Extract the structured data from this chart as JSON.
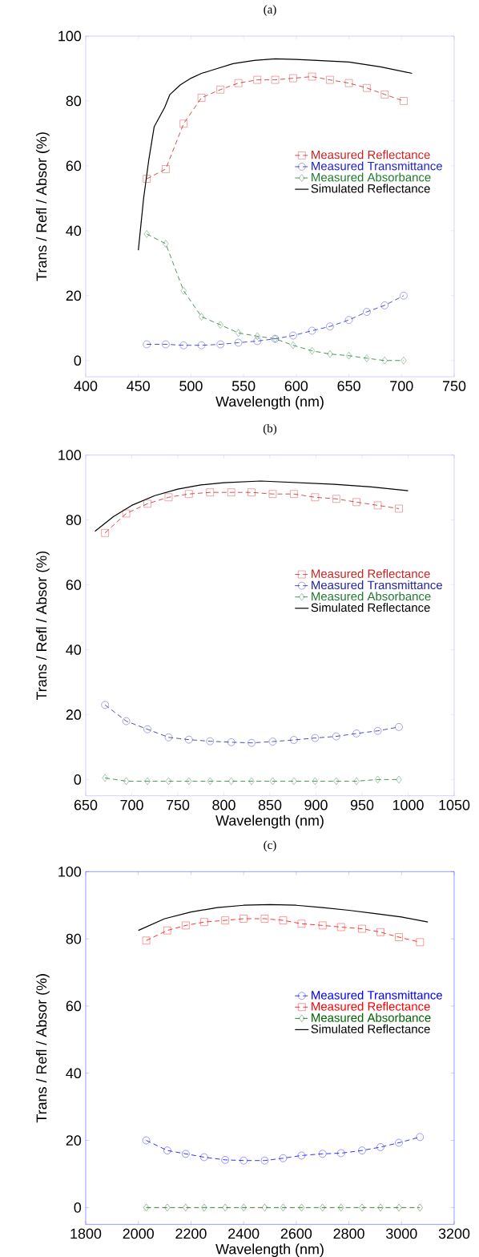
{
  "chart_data": [
    {
      "type": "line",
      "title": "(a)",
      "xlabel": "Wavelength (nm)",
      "ylabel": "Trans / Refl / Absor (%)",
      "xlim": [
        400,
        750
      ],
      "xticks": [
        400,
        450,
        500,
        550,
        600,
        650,
        700,
        750
      ],
      "ylim": [
        -5,
        100
      ],
      "yticks": [
        0,
        20,
        40,
        60,
        80,
        100
      ],
      "legend": "right",
      "grid": false,
      "series": [
        {
          "name": "Measured Reflectance",
          "color": "#cc2222",
          "marker": "square",
          "line_style": "dashed",
          "x": [
            458,
            476,
            493,
            510,
            528,
            545,
            563,
            580,
            597,
            615,
            632,
            650,
            667,
            684,
            702
          ],
          "values": [
            56,
            59,
            73,
            81,
            83.5,
            85.5,
            86.5,
            86.5,
            87,
            87.5,
            86.5,
            85.5,
            84,
            82,
            80
          ]
        },
        {
          "name": "Measured Transmittance",
          "color": "#2222cc",
          "marker": "circle",
          "line_style": "dashed",
          "x": [
            458,
            476,
            493,
            510,
            528,
            545,
            563,
            580,
            597,
            615,
            632,
            650,
            667,
            684,
            702
          ],
          "values": [
            5,
            5,
            4.7,
            4.7,
            5,
            5.5,
            6,
            6.7,
            7.7,
            9.2,
            10.5,
            12.5,
            15,
            17,
            20
          ]
        },
        {
          "name": "Measured Absorbance",
          "color": "#207a30",
          "marker": "diamond",
          "line_style": "dashed",
          "x": [
            458,
            476,
            493,
            510,
            528,
            545,
            563,
            580,
            597,
            615,
            632,
            650,
            667,
            684,
            702
          ],
          "values": [
            39,
            36,
            21.5,
            13.5,
            11,
            8.5,
            7.5,
            6.7,
            4.7,
            3,
            2,
            1.5,
            0.7,
            0,
            0
          ]
        },
        {
          "name": "Simulated Reflectance",
          "color": "#000000",
          "marker": "none",
          "line_style": "solid",
          "x": [
            450,
            455,
            460,
            465,
            475,
            480,
            490,
            500,
            510,
            520,
            540,
            560,
            580,
            600,
            620,
            650,
            680,
            710
          ],
          "values": [
            34,
            50,
            62,
            72,
            78,
            82,
            85,
            87,
            88.5,
            89.5,
            91.5,
            92.5,
            93,
            92.8,
            92.5,
            92,
            90.5,
            88.5
          ]
        }
      ]
    },
    {
      "type": "line",
      "title": "(b)",
      "xlabel": "Wavelength (nm)",
      "ylabel": "Trans / Refl / Absor (%)",
      "xlim": [
        650,
        1050
      ],
      "xticks": [
        650,
        700,
        750,
        800,
        850,
        900,
        950,
        1000,
        1050
      ],
      "ylim": [
        -5,
        100
      ],
      "yticks": [
        0,
        20,
        40,
        60,
        80,
        100
      ],
      "legend": "right",
      "grid": false,
      "series": [
        {
          "name": "Measured Reflectance",
          "color": "#cc2222",
          "marker": "square",
          "line_style": "dashed",
          "x": [
            671,
            694,
            717,
            740,
            762,
            785,
            808,
            830,
            853,
            876,
            899,
            922,
            944,
            967,
            990
          ],
          "values": [
            76,
            82,
            85,
            87,
            88,
            88.5,
            88.5,
            88.5,
            88,
            88,
            87,
            86.5,
            85.5,
            84.5,
            83.5
          ]
        },
        {
          "name": "Measured Transmittance",
          "color": "#2222aa",
          "marker": "circle",
          "line_style": "dashed",
          "x": [
            671,
            694,
            717,
            740,
            762,
            785,
            808,
            830,
            853,
            876,
            899,
            922,
            944,
            967,
            990
          ],
          "values": [
            23,
            18,
            15.5,
            13,
            12.3,
            11.8,
            11.5,
            11.3,
            11.7,
            12.2,
            12.8,
            13.3,
            14.2,
            15,
            16.2
          ]
        },
        {
          "name": "Measured Absorbance",
          "color": "#207a30",
          "marker": "diamond",
          "line_style": "dashed",
          "x": [
            671,
            694,
            717,
            740,
            762,
            785,
            808,
            830,
            853,
            876,
            899,
            922,
            944,
            967,
            990
          ],
          "values": [
            0.5,
            -0.5,
            -0.5,
            -0.5,
            -0.5,
            -0.5,
            -0.5,
            -0.5,
            -0.5,
            -0.5,
            -0.5,
            -0.5,
            -0.5,
            0,
            0
          ]
        },
        {
          "name": "Simulated Reflectance",
          "color": "#000000",
          "marker": "none",
          "line_style": "solid",
          "x": [
            660,
            680,
            700,
            725,
            750,
            775,
            800,
            840,
            880,
            920,
            960,
            1000
          ],
          "values": [
            76.5,
            81,
            84.5,
            87.5,
            89.5,
            90.8,
            91.5,
            92,
            91.5,
            91,
            90.2,
            89
          ]
        }
      ]
    },
    {
      "type": "line",
      "title": "(c)",
      "xlabel": "Wavelength (nm)",
      "ylabel": "Trans / Refl / Absor (%)",
      "xlim": [
        1800,
        3200
      ],
      "xticks": [
        1800,
        2000,
        2200,
        2400,
        2600,
        2800,
        3000,
        3200
      ],
      "ylim": [
        -5,
        100
      ],
      "yticks": [
        0,
        20,
        40,
        60,
        80,
        100
      ],
      "legend": "right",
      "grid": false,
      "series": [
        {
          "name": "Measured Transmittance",
          "color": "#0000ff",
          "marker": "circle",
          "line_style": "dashed",
          "x": [
            2030,
            2110,
            2180,
            2250,
            2330,
            2400,
            2480,
            2550,
            2620,
            2700,
            2770,
            2850,
            2920,
            2990,
            3070
          ],
          "values": [
            20,
            17,
            16,
            15,
            14.2,
            14,
            14,
            14.7,
            15.5,
            16,
            16.2,
            17,
            18,
            19.3,
            21
          ]
        },
        {
          "name": "Measured Reflectance",
          "color": "#ff0000",
          "marker": "square",
          "line_style": "dashed",
          "x": [
            2030,
            2110,
            2180,
            2250,
            2330,
            2400,
            2480,
            2550,
            2620,
            2700,
            2770,
            2850,
            2920,
            2990,
            3070
          ],
          "values": [
            79.5,
            82.5,
            84,
            85,
            85.5,
            86,
            86,
            85.5,
            84.5,
            84,
            83.5,
            83,
            82,
            80.5,
            79
          ]
        },
        {
          "name": "Measured Absorbance",
          "color": "#006400",
          "marker": "diamond",
          "line_style": "dashed",
          "x": [
            2030,
            2110,
            2180,
            2250,
            2330,
            2400,
            2480,
            2550,
            2620,
            2700,
            2770,
            2850,
            2920,
            2990,
            3070
          ],
          "values": [
            0,
            0,
            0,
            0,
            0,
            0,
            0,
            0,
            0,
            0,
            0,
            0,
            0,
            0,
            0
          ]
        },
        {
          "name": "Simulated Reflectance",
          "color": "#000000",
          "marker": "none",
          "line_style": "solid",
          "x": [
            2000,
            2100,
            2200,
            2300,
            2400,
            2500,
            2600,
            2700,
            2800,
            2900,
            3000,
            3100
          ],
          "values": [
            82.5,
            86,
            88,
            89.3,
            90,
            90.2,
            90,
            89.3,
            88.5,
            87.5,
            86.5,
            85
          ]
        }
      ]
    }
  ]
}
